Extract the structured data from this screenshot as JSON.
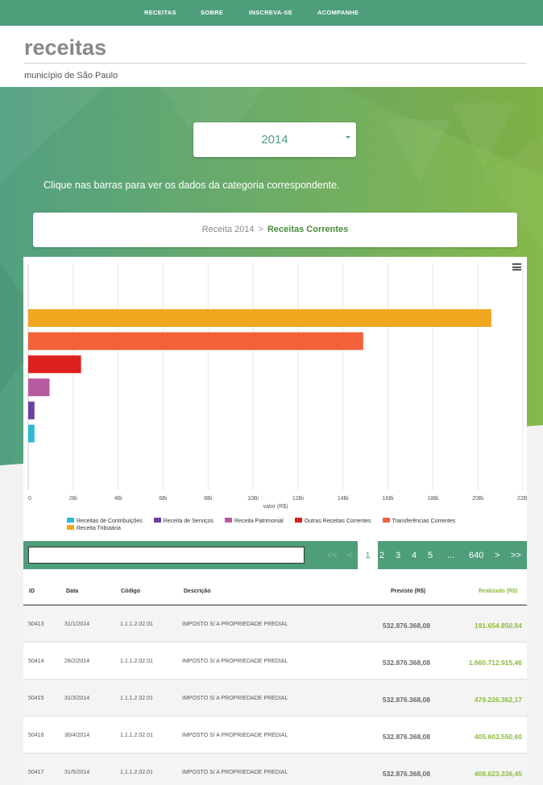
{
  "nav": {
    "items": [
      "RECEITAS",
      "SOBRE",
      "INSCREVA-SE",
      "ACOMPANHE"
    ]
  },
  "header": {
    "title": "receitas",
    "subtitle": "município de São Paulo"
  },
  "year_select": {
    "value": "2014"
  },
  "hint": "Clique nas barras para ver os dados da categoria correspondente.",
  "breadcrumb": {
    "root": "Receita 2014",
    "separator": ">",
    "current": "Receitas Correntes"
  },
  "chart_data": {
    "type": "bar",
    "orientation": "horizontal",
    "xlabel": "valor (R$)",
    "ylabel": "",
    "xlim": [
      0,
      22
    ],
    "x_ticks": [
      "0",
      "2Bi",
      "4Bi",
      "6Bi",
      "8Bi",
      "10Bi",
      "12Bi",
      "14Bi",
      "16Bi",
      "18Bi",
      "20Bi",
      "22Bi"
    ],
    "grid": true,
    "legend_position": "bottom",
    "series": [
      {
        "name": "Receita Tributária",
        "value": 20.6,
        "color": "#f0a820"
      },
      {
        "name": "Transferências Correntes",
        "value": 14.9,
        "color": "#f4603a"
      },
      {
        "name": "Outras Receitas Correntes",
        "value": 2.35,
        "color": "#dd1f1f"
      },
      {
        "name": "Receita Patrimonial",
        "value": 0.95,
        "color": "#b85aa0"
      },
      {
        "name": "Receita de Serviços",
        "value": 0.28,
        "color": "#6c3fa0"
      },
      {
        "name": "Receitas de Contribuições",
        "value": 0.28,
        "color": "#2cbad0"
      }
    ],
    "legend_order": [
      "Receitas de Contribuições",
      "Receita de Serviços",
      "Receita Patrimonial",
      "Outras Receitas Correntes",
      "Transferências Correntes",
      "Receita Tributária"
    ]
  },
  "search": {
    "value": "",
    "placeholder": ""
  },
  "pagination": {
    "first": "<<",
    "prev": "<",
    "pages": [
      "1",
      "2",
      "3",
      "4",
      "5"
    ],
    "ellipsis": "...",
    "last_page": "640",
    "next": ">",
    "last": ">>",
    "active": "1"
  },
  "table": {
    "headers": [
      "ID",
      "Data",
      "Código",
      "Descrição",
      "Previsto (R$)",
      "Realizado (R$)"
    ],
    "rows": [
      {
        "id": "50413",
        "data": "31/1/2014",
        "codigo": "1.1.1.2.02.01",
        "descricao": "IMPOSTO S/ A PROPRIEDADE PREDIAL",
        "previsto": "532.876.368,08",
        "realizado": "191.654.850,84"
      },
      {
        "id": "50414",
        "data": "28/2/2014",
        "codigo": "1.1.1.2.02.01",
        "descricao": "IMPOSTO S/ A PROPRIEDADE PREDIAL",
        "previsto": "532.876.368,08",
        "realizado": "1.660.712.915,46"
      },
      {
        "id": "50415",
        "data": "31/3/2014",
        "codigo": "1.1.1.2.02.01",
        "descricao": "IMPOSTO S/ A PROPRIEDADE PREDIAL",
        "previsto": "532.876.368,08",
        "realizado": "479.226.362,17"
      },
      {
        "id": "50416",
        "data": "30/4/2014",
        "codigo": "1.1.1.2.02.01",
        "descricao": "IMPOSTO S/ A PROPRIEDADE PREDIAL",
        "previsto": "532.876.368,08",
        "realizado": "405.603.550,60"
      },
      {
        "id": "50417",
        "data": "31/5/2014",
        "codigo": "1.1.1.2.02.01",
        "descricao": "IMPOSTO S/ A PROPRIEDADE PREDIAL",
        "previsto": "532.876.368,08",
        "realizado": "408.623.336,45"
      }
    ]
  }
}
